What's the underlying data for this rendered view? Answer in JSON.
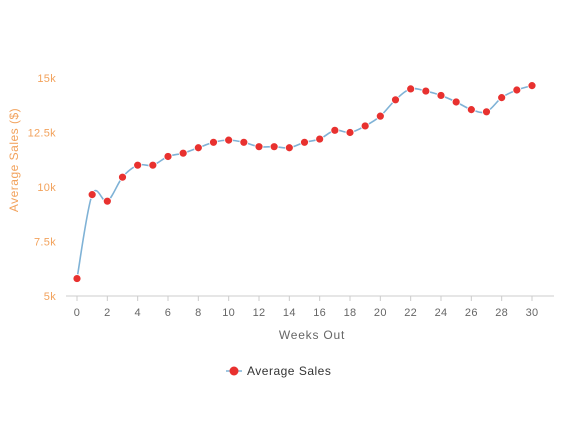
{
  "chart_data": {
    "type": "line",
    "title": "",
    "xlabel": "Weeks Out",
    "ylabel": "Average Sales ($)",
    "xlim": [
      0,
      31
    ],
    "ylim": [
      5000,
      16000
    ],
    "x_ticks": [
      0,
      2,
      4,
      6,
      8,
      10,
      12,
      14,
      16,
      18,
      20,
      22,
      24,
      26,
      28,
      30
    ],
    "y_ticks": [
      {
        "value": 5000,
        "label": "5k"
      },
      {
        "value": 7500,
        "label": "7.5k"
      },
      {
        "value": 10000,
        "label": "10k"
      },
      {
        "value": 12500,
        "label": "12.5k"
      },
      {
        "value": 15000,
        "label": "15k"
      }
    ],
    "grid": false,
    "legend_position": "bottom-center",
    "line_color": "#7fb2d6",
    "marker_color": "#e8312f",
    "axis_label_color": "#f2a25c",
    "series": [
      {
        "name": "Average Sales",
        "x": [
          0,
          1,
          2,
          3,
          4,
          5,
          6,
          7,
          8,
          9,
          10,
          11,
          12,
          13,
          14,
          15,
          16,
          17,
          18,
          19,
          20,
          21,
          22,
          23,
          24,
          25,
          26,
          27,
          28,
          29,
          30
        ],
        "values": [
          5800,
          9650,
          9350,
          10450,
          11000,
          11000,
          11400,
          11550,
          11800,
          12050,
          12150,
          12050,
          11850,
          11850,
          11800,
          12050,
          12200,
          12600,
          12500,
          12800,
          13250,
          14000,
          14500,
          14400,
          14200,
          13900,
          13550,
          13450,
          14100,
          14450,
          14650
        ]
      }
    ]
  }
}
